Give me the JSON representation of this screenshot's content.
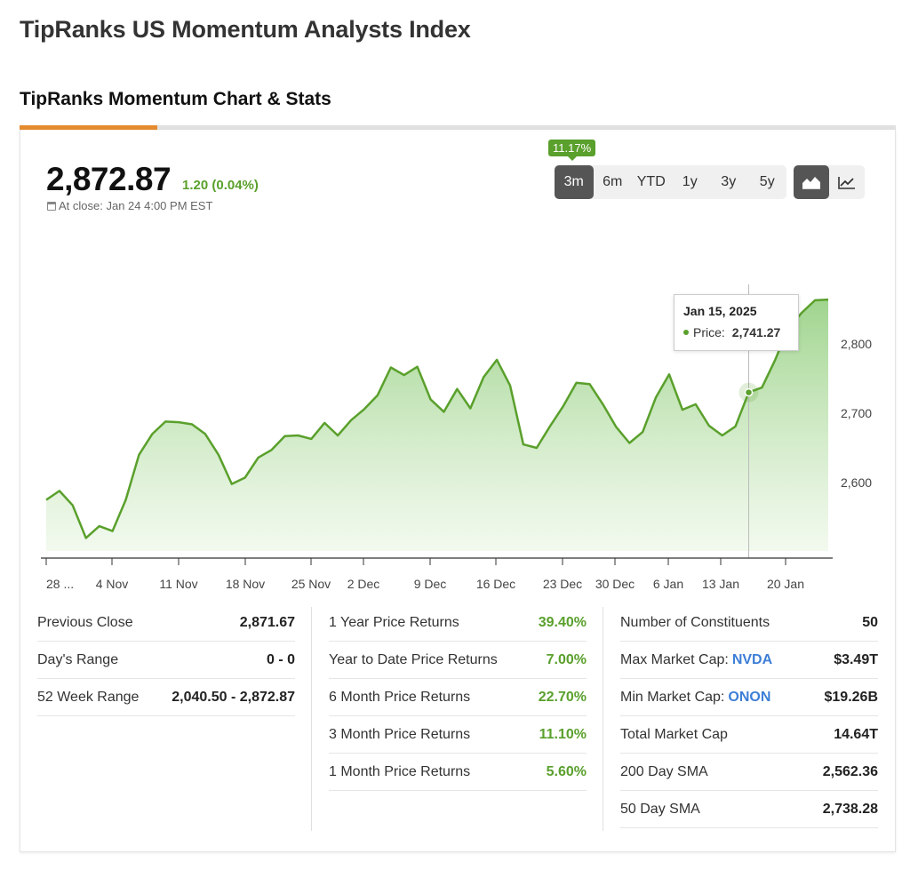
{
  "header": {
    "title": "TipRanks US Momentum Analysts Index"
  },
  "section": {
    "title": "TipRanks Momentum Chart & Stats"
  },
  "quote": {
    "price": "2,872.87",
    "change": "1.20 (0.04%)",
    "close_label": "At close: Jan 24 4:00 PM EST"
  },
  "range_badge": "11.17%",
  "range_buttons": [
    "3m",
    "6m",
    "YTD",
    "1y",
    "3y",
    "5y"
  ],
  "range_selected": "3m",
  "chart_type_buttons": [
    "area-chart-icon",
    "line-chart-icon"
  ],
  "colors": {
    "accent": "#5aa02c",
    "tab_progress": "#e58b2e",
    "link": "#3d7fd6"
  },
  "tooltip": {
    "date": "Jan 15, 2025",
    "label": "Price:",
    "value": "2,741.27"
  },
  "chart_data": {
    "type": "area",
    "x_ticks": [
      "28 ...",
      "4 Nov",
      "11 Nov",
      "18 Nov",
      "25 Nov",
      "2 Dec",
      "9 Dec",
      "16 Dec",
      "23 Dec",
      "30 Dec",
      "6 Jan",
      "13 Jan",
      "20 Jan"
    ],
    "y_ticks": [
      2600,
      2700,
      2800
    ],
    "y_tick_labels": [
      "2,600",
      "2,700",
      "2,800"
    ],
    "series": [
      {
        "values": [
          2575,
          2588,
          2567,
          2520,
          2537,
          2530,
          2575,
          2640,
          2670,
          2688,
          2687,
          2684,
          2670,
          2640,
          2598,
          2607,
          2636,
          2647,
          2667,
          2668,
          2663,
          2686,
          2668,
          2690,
          2706,
          2726,
          2766,
          2755,
          2767,
          2720,
          2702,
          2735,
          2707,
          2752,
          2777,
          2740,
          2655,
          2650,
          2681,
          2710,
          2744,
          2742,
          2713,
          2680,
          2657,
          2673,
          2723,
          2756,
          2705,
          2713,
          2682,
          2668,
          2681,
          2730,
          2737,
          2777,
          2823,
          2845,
          2863,
          2864
        ]
      }
    ],
    "highlight_index": 53,
    "ylim": [
      2520,
      2880
    ]
  },
  "stats": {
    "col1": [
      {
        "label": "Previous Close",
        "value": "2,871.67"
      },
      {
        "label": "Day's Range",
        "value": "0 - 0"
      },
      {
        "label": "52 Week Range",
        "value": "2,040.50 - 2,872.87"
      }
    ],
    "col2": [
      {
        "label": "1 Year Price Returns",
        "value": "39.40%"
      },
      {
        "label": "Year to Date Price Returns",
        "value": "7.00%"
      },
      {
        "label": "6 Month Price Returns",
        "value": "22.70%"
      },
      {
        "label": "3 Month Price Returns",
        "value": "11.10%"
      },
      {
        "label": "1 Month Price Returns",
        "value": "5.60%"
      }
    ],
    "col3": [
      {
        "label": "Number of Constituents",
        "value": "50"
      },
      {
        "label": "Max Market Cap:",
        "ticker": "NVDA",
        "value": "$3.49T"
      },
      {
        "label": "Min Market Cap:",
        "ticker": "ONON",
        "value": "$19.26B"
      },
      {
        "label": "Total Market Cap",
        "value": "14.64T"
      },
      {
        "label": "200 Day SMA",
        "value": "2,562.36"
      },
      {
        "label": "50 Day SMA",
        "value": "2,738.28"
      }
    ]
  }
}
